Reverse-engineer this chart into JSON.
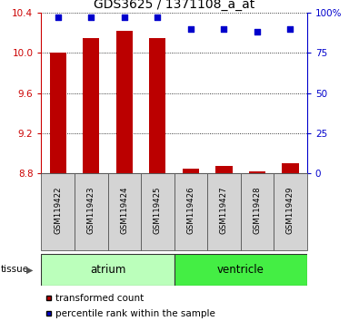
{
  "title": "GDS3625 / 1371108_a_at",
  "samples": [
    "GSM119422",
    "GSM119423",
    "GSM119424",
    "GSM119425",
    "GSM119426",
    "GSM119427",
    "GSM119428",
    "GSM119429"
  ],
  "transformed_counts": [
    10.0,
    10.15,
    10.22,
    10.15,
    8.85,
    8.87,
    8.82,
    8.9
  ],
  "percentile_ranks": [
    97,
    97,
    97,
    97,
    90,
    90,
    88,
    90
  ],
  "ylim": [
    8.8,
    10.4
  ],
  "yticks": [
    8.8,
    9.2,
    9.6,
    10.0,
    10.4
  ],
  "y2ticks": [
    0,
    25,
    50,
    75,
    100
  ],
  "y2tick_labels": [
    "0",
    "25",
    "50",
    "75",
    "100%"
  ],
  "bar_color": "#bb0000",
  "dot_color": "#0000cc",
  "bar_width": 0.5,
  "left_tick_color": "#cc0000",
  "right_tick_color": "#0000cc",
  "group_info": [
    {
      "label": "atrium",
      "start": 0,
      "end": 3,
      "color": "#bbffbb"
    },
    {
      "label": "ventricle",
      "start": 4,
      "end": 7,
      "color": "#44ee44"
    }
  ],
  "legend_bar_label": "transformed count",
  "legend_dot_label": "percentile rank within the sample",
  "tissue_label": "tissue"
}
